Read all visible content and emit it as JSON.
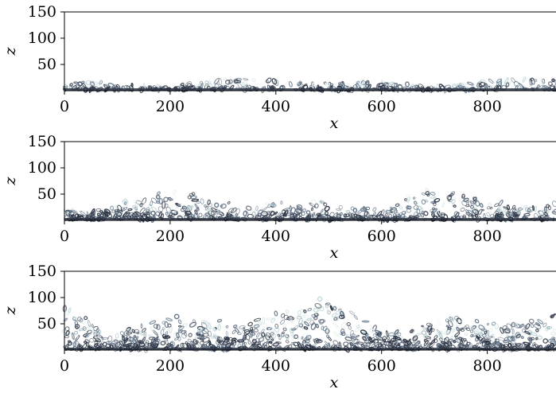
{
  "chart_data": [
    {
      "type": "heatmap",
      "description_visible": "instantaneous flow-visualization field (turbulent layer near bottom)",
      "xlabel": "x",
      "ylabel": "z",
      "xlim": [
        0,
        930
      ],
      "ylim": [
        0,
        150
      ],
      "xticks": [
        0,
        200,
        400,
        600,
        800
      ],
      "xtick_labels": [
        "0",
        "200",
        "400",
        "600",
        "800"
      ],
      "yticks": [
        50,
        100,
        150
      ],
      "ytick_labels": [
        "50",
        "100",
        "150"
      ],
      "layer_top_z": 20,
      "seed": 11
    },
    {
      "type": "heatmap",
      "xlabel": "x",
      "ylabel": "z",
      "xlim": [
        0,
        930
      ],
      "ylim": [
        0,
        150
      ],
      "xticks": [
        0,
        200,
        400,
        600,
        800
      ],
      "xtick_labels": [
        "0",
        "200",
        "400",
        "600",
        "800"
      ],
      "yticks": [
        50,
        100,
        150
      ],
      "ytick_labels": [
        "50",
        "100",
        "150"
      ],
      "layer_top_z": 50,
      "seed": 23
    },
    {
      "type": "heatmap",
      "xlabel": "x",
      "ylabel": "z",
      "xlim": [
        0,
        930
      ],
      "ylim": [
        0,
        150
      ],
      "xticks": [
        0,
        200,
        400,
        600,
        800
      ],
      "xtick_labels": [
        "0",
        "200",
        "400",
        "600",
        "800"
      ],
      "yticks": [
        50,
        100,
        150
      ],
      "ytick_labels": [
        "50",
        "100",
        "150"
      ],
      "layer_top_z": 85,
      "seed": 37
    }
  ],
  "colors": {
    "dark": "#2b3444",
    "mid": "#5f7185",
    "light": "#b9d2d4",
    "pale": "#e3eeee",
    "axis": "#000000"
  }
}
